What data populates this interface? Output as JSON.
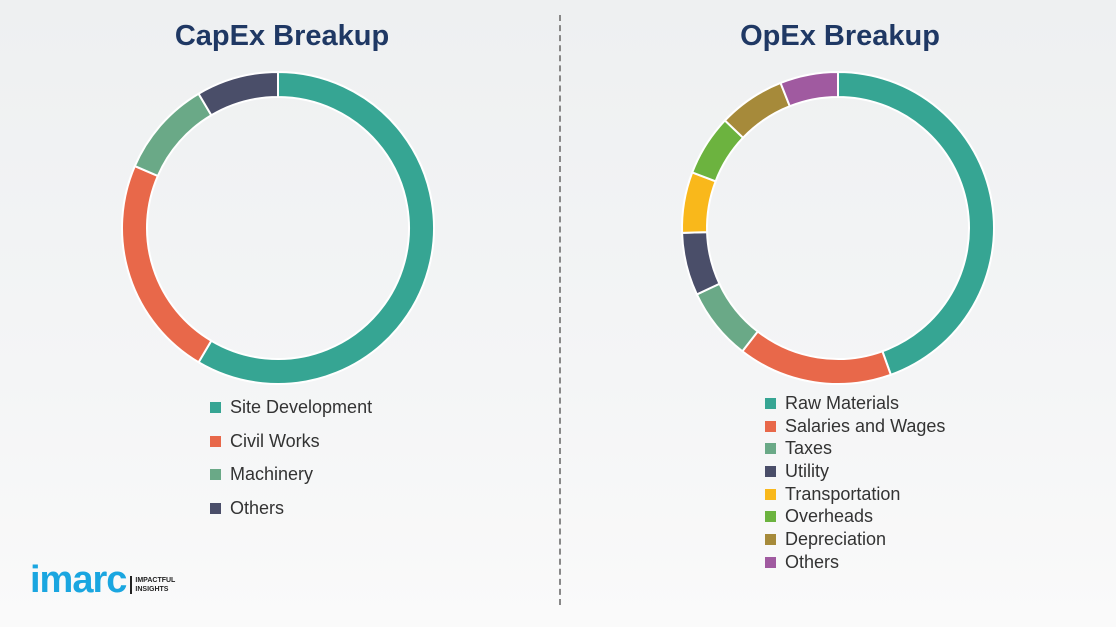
{
  "chart_data": [
    {
      "type": "pie",
      "title": "CapEx Breakup",
      "donut": true,
      "legend_placement": "bottom",
      "categories": [
        "Site Development",
        "Civil Works",
        "Machinery",
        "Others"
      ],
      "values": [
        58.5,
        23,
        10,
        8.5
      ],
      "colors": [
        "#36a593",
        "#e8684a",
        "#6aa987",
        "#4a4e69"
      ]
    },
    {
      "type": "pie",
      "title": "OpEx Breakup",
      "donut": true,
      "legend_placement": "bottom",
      "categories": [
        "Raw Materials",
        "Salaries and Wages",
        "Taxes",
        "Utility",
        "Transportation",
        "Overheads",
        "Depreciation",
        "Others"
      ],
      "values": [
        44.5,
        16,
        7.5,
        6.5,
        6.3,
        6.3,
        6.9,
        6
      ],
      "colors": [
        "#36a593",
        "#e8684a",
        "#6aa987",
        "#4a4e69",
        "#f9b81b",
        "#6cb33f",
        "#a68a3a",
        "#a05aa0"
      ]
    }
  ],
  "logo": {
    "word": "imarc",
    "tagline": "IMPACTFUL INSIGHTS"
  }
}
